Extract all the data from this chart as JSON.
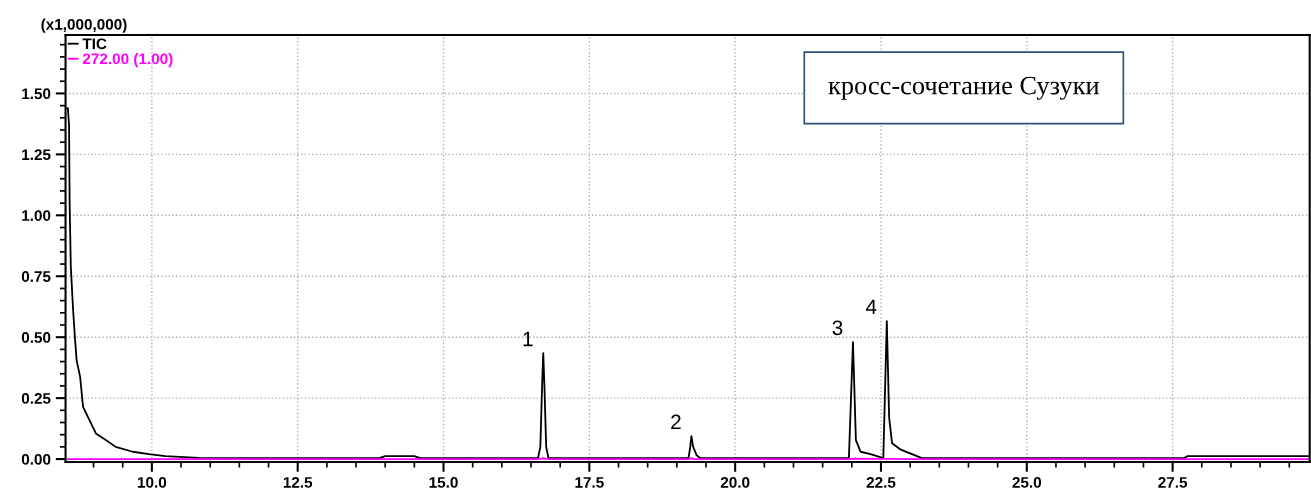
{
  "chart_data": {
    "type": "line",
    "ylabel": "(x1,000,000)",
    "annotations": [
      "кросс-сочетание Сузуки",
      {
        "text": "1",
        "x": 16.71,
        "y": 0.434
      },
      {
        "text": "2",
        "x": 19.25,
        "y": 0.094
      },
      {
        "text": "3",
        "x": 22.02,
        "y": 0.48
      },
      {
        "text": "4",
        "x": 22.6,
        "y": 0.566
      }
    ],
    "series": [
      {
        "name": "TIC",
        "color": "#000000",
        "x": [
          8.55,
          8.56,
          8.58,
          8.59,
          8.61,
          8.65,
          8.68,
          8.71,
          8.77,
          8.82,
          8.93,
          9.04,
          9.21,
          9.38,
          9.67,
          9.95,
          10.23,
          10.8,
          12.0,
          13.9,
          14.0,
          14.5,
          14.6,
          16.0,
          16.62,
          16.66,
          16.69,
          16.71,
          16.73,
          16.76,
          16.8,
          18.5,
          19.2,
          19.23,
          19.25,
          19.28,
          19.34,
          19.4,
          21.9,
          21.95,
          22.02,
          22.07,
          22.15,
          22.32,
          22.46,
          22.54,
          22.6,
          22.64,
          22.69,
          22.83,
          23.2,
          25.0,
          27.7,
          27.75,
          29.85
        ],
        "values": [
          1.44,
          1.44,
          1.37,
          1.05,
          0.79,
          0.61,
          0.5,
          0.405,
          0.337,
          0.214,
          0.16,
          0.105,
          0.078,
          0.05,
          0.03,
          0.02,
          0.012,
          0.005,
          0.004,
          0.004,
          0.012,
          0.012,
          0.004,
          0.004,
          0.004,
          0.05,
          0.3,
          0.434,
          0.3,
          0.05,
          0.004,
          0.004,
          0.004,
          0.05,
          0.094,
          0.05,
          0.015,
          0.004,
          0.004,
          0.004,
          0.48,
          0.078,
          0.03,
          0.02,
          0.01,
          0.004,
          0.566,
          0.17,
          0.065,
          0.04,
          0.004,
          0.004,
          0.004,
          0.012,
          0.012
        ]
      },
      {
        "name": "272.00 (1.00)",
        "color": "#ff00ff",
        "x": [
          8.55,
          16.6,
          16.71,
          16.8,
          19.2,
          19.25,
          19.3,
          21.95,
          22.02,
          23.1,
          29.85
        ],
        "values": [
          0.0,
          0.0,
          0.004,
          0.0,
          0.0,
          0.004,
          0.0,
          0.0,
          0.002,
          0.0,
          0.0
        ]
      }
    ],
    "xlim": [
      8.52,
      29.85
    ],
    "ylim": [
      -0.012,
      1.74
    ],
    "xticks": [
      {
        "value": 9.0,
        "label": null
      },
      {
        "value": 9.5,
        "label": null
      },
      {
        "value": 10.0,
        "label": "10.0"
      },
      {
        "value": 10.5,
        "label": null
      },
      {
        "value": 11.0,
        "label": null
      },
      {
        "value": 11.5,
        "label": null
      },
      {
        "value": 12.0,
        "label": null
      },
      {
        "value": 12.5,
        "label": "12.5"
      },
      {
        "value": 13.0,
        "label": null
      },
      {
        "value": 13.5,
        "label": null
      },
      {
        "value": 14.0,
        "label": null
      },
      {
        "value": 14.5,
        "label": null
      },
      {
        "value": 15.0,
        "label": "15.0"
      },
      {
        "value": 15.5,
        "label": null
      },
      {
        "value": 16.0,
        "label": null
      },
      {
        "value": 16.5,
        "label": null
      },
      {
        "value": 17.0,
        "label": null
      },
      {
        "value": 17.5,
        "label": "17.5"
      },
      {
        "value": 18.0,
        "label": null
      },
      {
        "value": 18.5,
        "label": null
      },
      {
        "value": 19.0,
        "label": null
      },
      {
        "value": 19.5,
        "label": null
      },
      {
        "value": 20.0,
        "label": "20.0"
      },
      {
        "value": 20.5,
        "label": null
      },
      {
        "value": 21.0,
        "label": null
      },
      {
        "value": 21.5,
        "label": null
      },
      {
        "value": 22.0,
        "label": null
      },
      {
        "value": 22.5,
        "label": "22.5"
      },
      {
        "value": 23.0,
        "label": null
      },
      {
        "value": 23.5,
        "label": null
      },
      {
        "value": 24.0,
        "label": null
      },
      {
        "value": 24.5,
        "label": null
      },
      {
        "value": 25.0,
        "label": "25.0"
      },
      {
        "value": 25.5,
        "label": null
      },
      {
        "value": 26.0,
        "label": null
      },
      {
        "value": 26.5,
        "label": null
      },
      {
        "value": 27.0,
        "label": null
      },
      {
        "value": 27.5,
        "label": "27.5"
      },
      {
        "value": 28.0,
        "label": null
      },
      {
        "value": 28.5,
        "label": null
      },
      {
        "value": 29.0,
        "label": null
      },
      {
        "value": 29.5,
        "label": null
      }
    ],
    "yticks": [
      {
        "value": 0.0,
        "label": "0.00"
      },
      {
        "value": 0.05,
        "label": null
      },
      {
        "value": 0.1,
        "label": null
      },
      {
        "value": 0.15,
        "label": null
      },
      {
        "value": 0.2,
        "label": null
      },
      {
        "value": 0.25,
        "label": "0.25"
      },
      {
        "value": 0.3,
        "label": null
      },
      {
        "value": 0.35,
        "label": null
      },
      {
        "value": 0.4,
        "label": null
      },
      {
        "value": 0.45,
        "label": null
      },
      {
        "value": 0.5,
        "label": "0.50"
      },
      {
        "value": 0.55,
        "label": null
      },
      {
        "value": 0.6,
        "label": null
      },
      {
        "value": 0.65,
        "label": null
      },
      {
        "value": 0.7,
        "label": null
      },
      {
        "value": 0.75,
        "label": "0.75"
      },
      {
        "value": 0.8,
        "label": null
      },
      {
        "value": 0.85,
        "label": null
      },
      {
        "value": 0.9,
        "label": null
      },
      {
        "value": 0.95,
        "label": null
      },
      {
        "value": 1.0,
        "label": "1.00"
      },
      {
        "value": 1.05,
        "label": null
      },
      {
        "value": 1.1,
        "label": null
      },
      {
        "value": 1.15,
        "label": null
      },
      {
        "value": 1.2,
        "label": null
      },
      {
        "value": 1.25,
        "label": "1.25"
      },
      {
        "value": 1.3,
        "label": null
      },
      {
        "value": 1.35,
        "label": null
      },
      {
        "value": 1.4,
        "label": null
      },
      {
        "value": 1.45,
        "label": null
      },
      {
        "value": 1.5,
        "label": "1.50"
      },
      {
        "value": 1.55,
        "label": null
      },
      {
        "value": 1.6,
        "label": null
      },
      {
        "value": 1.65,
        "label": null
      },
      {
        "value": 1.7,
        "label": null
      }
    ],
    "grid": true,
    "legend": "top left",
    "marker": "none",
    "line_style": "solid"
  }
}
